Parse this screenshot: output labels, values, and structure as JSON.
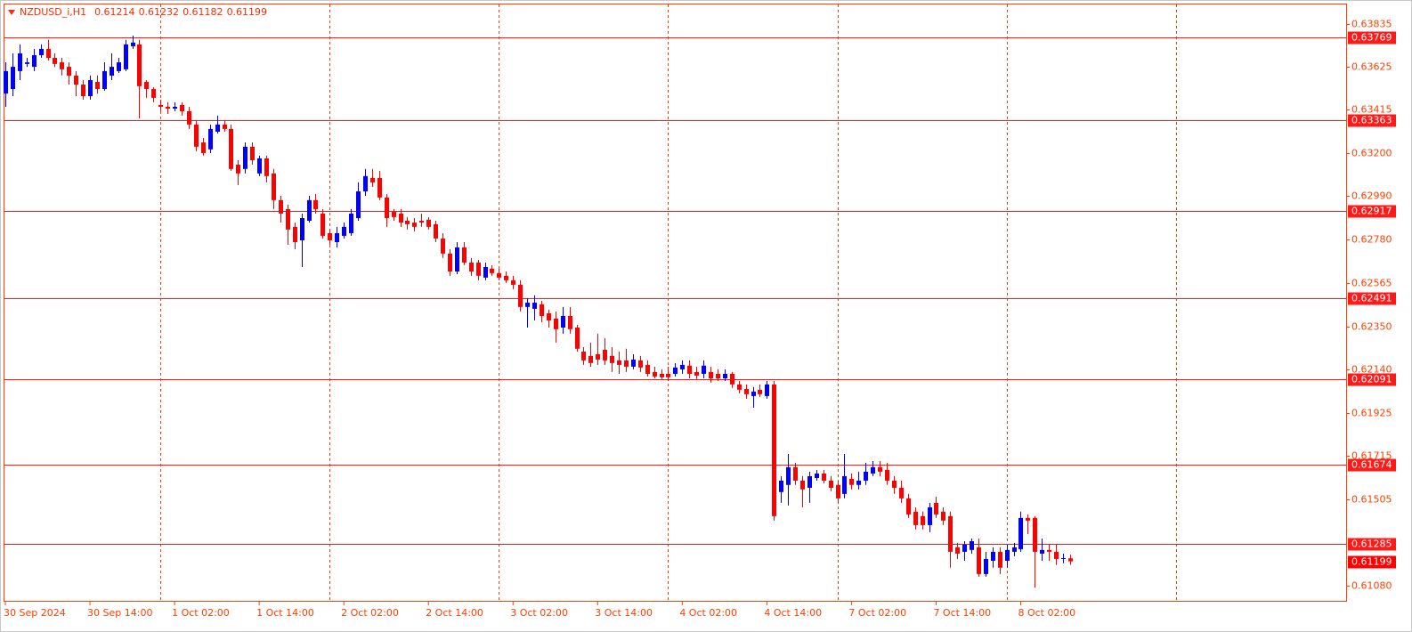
{
  "chart_data": {
    "type": "candlestick",
    "title": "NZDUSD_i,H1",
    "categories": [
      "30 Sep 2024",
      null,
      null,
      null,
      null,
      null,
      null,
      null,
      null,
      null,
      null,
      null,
      "30 Sep 14:00",
      null,
      null,
      null,
      null,
      null,
      null,
      null,
      null,
      null,
      null,
      null,
      "1 Oct 02:00",
      null,
      null,
      null,
      null,
      null,
      null,
      null,
      null,
      null,
      null,
      null,
      "1 Oct 14:00",
      null,
      null,
      null,
      null,
      null,
      null,
      null,
      null,
      null,
      null,
      null,
      "2 Oct 02:00",
      null,
      null,
      null,
      null,
      null,
      null,
      null,
      null,
      null,
      null,
      null,
      "2 Oct 14:00",
      null,
      null,
      null,
      null,
      null,
      null,
      null,
      null,
      null,
      null,
      null,
      "3 Oct 02:00",
      null,
      null,
      null,
      null,
      null,
      null,
      null,
      null,
      null,
      null,
      null,
      "3 Oct 14:00",
      null,
      null,
      null,
      null,
      null,
      null,
      null,
      null,
      null,
      null,
      null,
      "4 Oct 02:00",
      null,
      null,
      null,
      null,
      null,
      null,
      null,
      null,
      null,
      null,
      null,
      "4 Oct 14:00",
      null,
      null,
      null,
      null,
      null,
      null,
      null,
      null,
      null,
      null,
      null,
      "7 Oct 02:00",
      null,
      null,
      null,
      null,
      null,
      null,
      null,
      null,
      null,
      null,
      null,
      "7 Oct 14:00",
      null,
      null,
      null,
      null,
      null,
      null,
      null,
      null,
      null,
      null,
      null,
      "8 Oct 02:00",
      null,
      null,
      null,
      null,
      null,
      null,
      null
    ],
    "open": [
      0.63494,
      0.63516,
      0.63604,
      0.63639,
      0.63625,
      0.63682,
      0.63713,
      0.63669,
      0.63647,
      0.63625,
      0.63582,
      0.63538,
      0.63481,
      0.63551,
      0.63516,
      0.63582,
      0.63604,
      0.63613,
      0.63726,
      0.63735,
      0.63551,
      0.63516,
      0.63438,
      0.63429,
      0.6342,
      0.63438,
      0.63407,
      0.63342,
      0.63254,
      0.6322,
      0.63307,
      0.63342,
      0.6332,
      0.63145,
      0.63124,
      0.63233,
      0.63102,
      0.63176,
      0.63102,
      0.62971,
      0.62927,
      0.6284,
      0.62774,
      0.6287,
      0.62971,
      0.62905,
      0.62809,
      0.62765,
      0.62796,
      0.62809,
      0.62883,
      0.63014,
      0.6308,
      0.6308,
      0.62984,
      0.62914,
      0.62905,
      0.6287,
      0.62861,
      0.6287,
      0.62875,
      0.62853,
      0.62783,
      0.62709,
      0.62621,
      0.62739,
      0.62665,
      0.62665,
      0.62591,
      0.62635,
      0.62613,
      0.626,
      0.62578,
      0.62556,
      0.62447,
      0.62438,
      0.6246,
      0.62416,
      0.6239,
      0.62346,
      0.62403,
      0.62346,
      0.62228,
      0.62207,
      0.62215,
      0.62237,
      0.62207,
      0.62185,
      0.62185,
      0.62154,
      0.62185,
      0.62163,
      0.62128,
      0.62119,
      0.62119,
      0.62119,
      0.62141,
      0.62159,
      0.62128,
      0.62119,
      0.62128,
      0.62119,
      0.62097,
      0.62119,
      0.62067,
      0.62045,
      0.6201,
      0.62041,
      0.6201,
      0.62067,
      0.61539,
      0.61574,
      0.61661,
      0.61595,
      0.6156,
      0.61608,
      0.6163,
      0.61595,
      0.61574,
      0.6153,
      0.61604,
      0.61574,
      0.61595,
      0.6163,
      0.61661,
      0.61648,
      0.61595,
      0.6156,
      0.61508,
      0.61443,
      0.61421,
      0.61377,
      0.61486,
      0.61443,
      0.61421,
      0.61268,
      0.61246,
      0.61255,
      0.61268,
      0.61137,
      0.61202,
      0.61246,
      0.61202,
      0.61246,
      0.61259,
      0.61412,
      0.61412,
      0.61237,
      0.61255,
      0.61246,
      0.61211,
      0.61214
    ],
    "high": [
      0.63647,
      0.63691,
      0.63735,
      0.63669,
      0.63713,
      0.63735,
      0.63757,
      0.63691,
      0.63669,
      0.63647,
      0.63604,
      0.6356,
      0.63582,
      0.63582,
      0.63647,
      0.63691,
      0.63669,
      0.63757,
      0.63778,
      0.63757,
      0.6356,
      0.63525,
      0.63464,
      0.63451,
      0.63451,
      0.63451,
      0.63429,
      0.63364,
      0.63276,
      0.63342,
      0.63385,
      0.63364,
      0.63342,
      0.63167,
      0.63254,
      0.63254,
      0.63189,
      0.63189,
      0.63124,
      0.62992,
      0.62949,
      0.62861,
      0.62905,
      0.62992,
      0.63001,
      0.62927,
      0.62827,
      0.6284,
      0.62861,
      0.62927,
      0.63058,
      0.63124,
      0.63124,
      0.63115,
      0.63001,
      0.62927,
      0.62927,
      0.62888,
      0.62883,
      0.62905,
      0.62888,
      0.6287,
      0.62809,
      0.6273,
      0.62765,
      0.62765,
      0.62687,
      0.62678,
      0.62665,
      0.62652,
      0.62635,
      0.62621,
      0.626,
      0.62578,
      0.6249,
      0.62504,
      0.62477,
      0.62434,
      0.62425,
      0.62447,
      0.62447,
      0.62359,
      0.6225,
      0.62272,
      0.62316,
      0.62294,
      0.6225,
      0.62228,
      0.62242,
      0.62215,
      0.62207,
      0.62185,
      0.62154,
      0.62141,
      0.62154,
      0.62172,
      0.62185,
      0.62185,
      0.62154,
      0.62185,
      0.62154,
      0.62141,
      0.62141,
      0.62128,
      0.62084,
      0.62067,
      0.62054,
      0.62067,
      0.62084,
      0.62084,
      0.61617,
      0.61726,
      0.61683,
      0.61617,
      0.61639,
      0.61648,
      0.61648,
      0.61617,
      0.61595,
      0.61726,
      0.6163,
      0.61639,
      0.61683,
      0.61691,
      0.61691,
      0.61683,
      0.61617,
      0.61595,
      0.6153,
      0.61464,
      0.61443,
      0.61486,
      0.61517,
      0.61464,
      0.61443,
      0.6129,
      0.61298,
      0.61311,
      0.61311,
      0.61246,
      0.61268,
      0.61268,
      0.61281,
      0.6129,
      0.61443,
      0.61429,
      0.61421,
      0.61311,
      0.61281,
      0.61281,
      0.61237,
      0.61232
    ],
    "low": [
      0.63429,
      0.63481,
      0.6356,
      0.63625,
      0.63604,
      0.63669,
      0.63656,
      0.63625,
      0.63582,
      0.63538,
      0.63481,
      0.63464,
      0.63464,
      0.63494,
      0.63508,
      0.6356,
      0.63595,
      0.63604,
      0.63713,
      0.63372,
      0.63473,
      0.63451,
      0.63407,
      0.63394,
      0.63407,
      0.63385,
      0.6332,
      0.63211,
      0.63189,
      0.63202,
      0.63298,
      0.63307,
      0.63115,
      0.63045,
      0.63102,
      0.63145,
      0.63089,
      0.63058,
      0.62927,
      0.62861,
      0.62752,
      0.6273,
      0.62643,
      0.62861,
      0.62905,
      0.62783,
      0.62752,
      0.62739,
      0.62783,
      0.62796,
      0.6287,
      0.62992,
      0.63036,
      0.62971,
      0.6284,
      0.6287,
      0.6284,
      0.62827,
      0.62818,
      0.6284,
      0.62827,
      0.62765,
      0.62687,
      0.626,
      0.62608,
      0.62652,
      0.626,
      0.62578,
      0.62578,
      0.626,
      0.62578,
      0.62565,
      0.62534,
      0.62425,
      0.62346,
      0.62381,
      0.62372,
      0.62346,
      0.62272,
      0.62316,
      0.62316,
      0.62228,
      0.62163,
      0.62154,
      0.62163,
      0.62163,
      0.62128,
      0.62119,
      0.62128,
      0.62141,
      0.62128,
      0.62106,
      0.62097,
      0.62093,
      0.62084,
      0.62106,
      0.62119,
      0.62097,
      0.62093,
      0.62097,
      0.62076,
      0.62084,
      0.62084,
      0.6205,
      0.62023,
      0.61997,
      0.61953,
      0.62006,
      0.61997,
      0.61399,
      0.61486,
      0.61473,
      0.61574,
      0.61464,
      0.61486,
      0.61595,
      0.61582,
      0.61543,
      0.61486,
      0.61508,
      0.61552,
      0.61552,
      0.61574,
      0.61617,
      0.61617,
      0.61574,
      0.6153,
      0.61486,
      0.61412,
      0.61355,
      0.61355,
      0.61342,
      0.61412,
      0.61377,
      0.61168,
      0.61211,
      0.61202,
      0.61237,
      0.61124,
      0.61124,
      0.61168,
      0.61137,
      0.61168,
      0.61224,
      0.61246,
      0.61333,
      0.61071,
      0.61202,
      0.61202,
      0.61181,
      0.6119,
      0.61182
    ],
    "close": [
      0.63604,
      0.63625,
      0.63691,
      0.63647,
      0.63682,
      0.63713,
      0.63669,
      0.63639,
      0.63613,
      0.63582,
      0.63538,
      0.63481,
      0.6356,
      0.63516,
      0.63604,
      0.63625,
      0.63647,
      0.63735,
      0.63744,
      0.6353,
      0.63516,
      0.63473,
      0.63429,
      0.6342,
      0.63429,
      0.63407,
      0.63342,
      0.63233,
      0.63202,
      0.6332,
      0.63342,
      0.6332,
      0.63124,
      0.63102,
      0.63233,
      0.63167,
      0.63176,
      0.63089,
      0.62971,
      0.62905,
      0.62827,
      0.62765,
      0.62883,
      0.62971,
      0.62927,
      0.62796,
      0.62774,
      0.62809,
      0.6284,
      0.62905,
      0.63014,
      0.63089,
      0.63058,
      0.62984,
      0.62883,
      0.62888,
      0.62861,
      0.62853,
      0.6284,
      0.62861,
      0.6284,
      0.62783,
      0.62709,
      0.62621,
      0.62739,
      0.62665,
      0.62621,
      0.626,
      0.62643,
      0.62613,
      0.62591,
      0.62578,
      0.62556,
      0.62447,
      0.62468,
      0.62468,
      0.62403,
      0.62381,
      0.62338,
      0.62403,
      0.62338,
      0.62242,
      0.62185,
      0.62172,
      0.62189,
      0.62185,
      0.62172,
      0.62163,
      0.62154,
      0.62189,
      0.6215,
      0.62119,
      0.62106,
      0.62102,
      0.62102,
      0.6215,
      0.62163,
      0.62119,
      0.6211,
      0.62159,
      0.62097,
      0.62097,
      0.62119,
      0.62067,
      0.62041,
      0.62019,
      0.62032,
      0.62019,
      0.62067,
      0.61421,
      0.61595,
      0.61661,
      0.61595,
      0.61552,
      0.61617,
      0.6163,
      0.61595,
      0.6156,
      0.61508,
      0.61617,
      0.61574,
      0.61595,
      0.61639,
      0.61661,
      0.61639,
      0.61595,
      0.6156,
      0.61508,
      0.61429,
      0.61377,
      0.61377,
      0.61464,
      0.61429,
      0.61399,
      0.61246,
      0.61237,
      0.61281,
      0.61298,
      0.61137,
      0.61211,
      0.61246,
      0.61168,
      0.61255,
      0.61268,
      0.61412,
      0.61399,
      0.61246,
      0.61255,
      0.61246,
      0.61211,
      0.61215,
      0.61199
    ],
    "up_color": "#0000ff",
    "down_color": "#ff0000",
    "ylim": [
      0.61001,
      0.63931
    ],
    "yticks": [
      0.63835,
      0.63625,
      0.63415,
      {
        "value": 0.632,
        "label": "0.63200"
      },
      {
        "value": 0.6299,
        "label": "0.62990"
      },
      {
        "value": 0.6278,
        "label": "0.62780"
      },
      0.62565,
      {
        "value": 0.6235,
        "label": "0.62350"
      },
      {
        "value": 0.6214,
        "label": "0.62140"
      },
      0.61925,
      0.61715,
      0.61505,
      {
        "value": 0.6108,
        "label": "0.61080"
      }
    ],
    "levels": [
      0.63769,
      0.63363,
      0.62917,
      0.62491,
      0.62091,
      0.61674,
      0.61285
    ],
    "level_color": "#ff1a1a",
    "period_separators": [
      22,
      46,
      70,
      94,
      118,
      142,
      166
    ],
    "axis_color": "#ff4000"
  }
}
